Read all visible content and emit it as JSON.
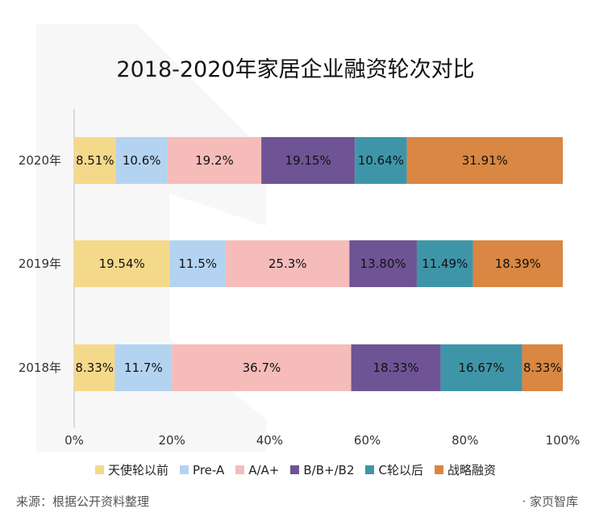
{
  "title": "2018-2020年家居企业融资轮次对比",
  "source": "来源：根据公开资料整理",
  "brand": "· 家页智库",
  "chart_data": {
    "type": "bar",
    "orientation": "horizontal",
    "stacked": true,
    "title": "2018-2020年家居企业融资轮次对比",
    "categories": [
      "2020年",
      "2019年",
      "2018年"
    ],
    "xlim": [
      0,
      100
    ],
    "x_ticks": [
      "0%",
      "20%",
      "40%",
      "60%",
      "80%",
      "100%"
    ],
    "grid": false,
    "legend_position": "bottom",
    "series": [
      {
        "name": "天使轮以前",
        "color": "#F5D98B",
        "values": [
          8.51,
          19.54,
          8.33
        ],
        "labels": [
          "8.51%",
          "19.54%",
          "8.33%"
        ]
      },
      {
        "name": "Pre-A",
        "color": "#B3D3F1",
        "values": [
          10.6,
          11.5,
          11.7
        ],
        "labels": [
          "10.6%",
          "11.5%",
          "11.7%"
        ]
      },
      {
        "name": "A/A+",
        "color": "#F5BCBA",
        "values": [
          19.2,
          25.3,
          36.7
        ],
        "labels": [
          "19.2%",
          "25.3%",
          "36.7%"
        ]
      },
      {
        "name": "B/B+/B2",
        "color": "#6E5495",
        "values": [
          19.15,
          13.8,
          18.33
        ],
        "labels": [
          "19.15%",
          "13.80%",
          "18.33%"
        ]
      },
      {
        "name": "C轮以后",
        "color": "#3F95A8",
        "values": [
          10.64,
          11.49,
          16.67
        ],
        "labels": [
          "10.64%",
          "11.49%",
          "16.67%"
        ]
      },
      {
        "name": "战略融资",
        "color": "#D98742",
        "values": [
          31.91,
          18.39,
          8.33
        ],
        "labels": [
          "31.91%",
          "18.39%",
          "8.33%"
        ]
      }
    ]
  }
}
